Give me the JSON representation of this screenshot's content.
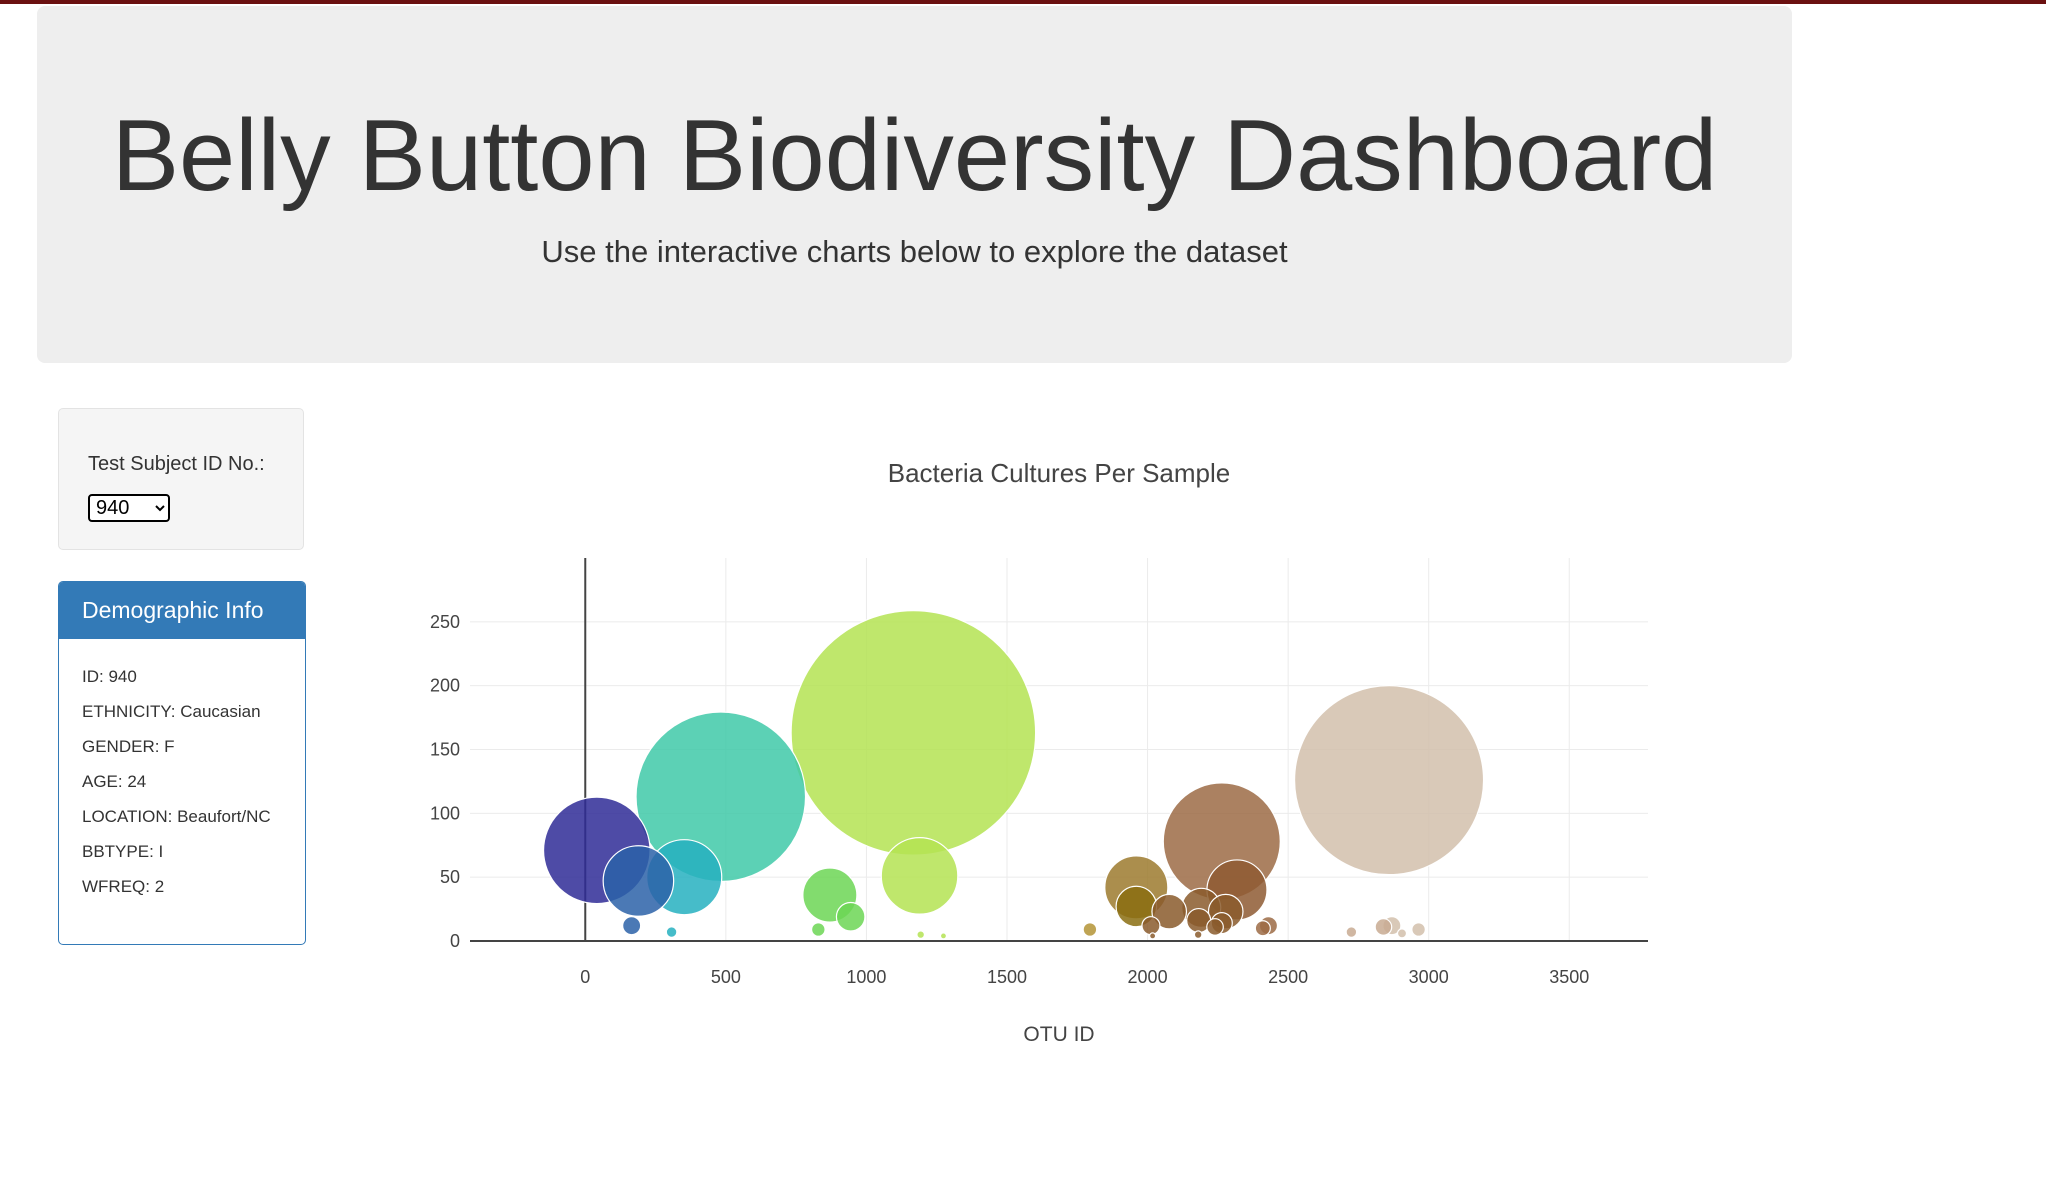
{
  "header": {
    "title": "Belly Button Biodiversity Dashboard",
    "subtitle": "Use the interactive charts below to explore the dataset"
  },
  "selector": {
    "label": "Test Subject ID No.:",
    "selected": "940"
  },
  "demographics": {
    "heading": "Demographic Info",
    "rows": [
      "ID: 940",
      "ETHNICITY: Caucasian",
      "GENDER: F",
      "AGE: 24",
      "LOCATION: Beaufort/NC",
      "BBTYPE: I",
      "WFREQ: 2"
    ]
  },
  "chart_data": {
    "type": "scatter",
    "title": "Bacteria Cultures Per Sample",
    "xlabel": "OTU ID",
    "ylabel": "",
    "xlim": [
      -410,
      3780
    ],
    "ylim": [
      0,
      300
    ],
    "xticks": [
      0,
      500,
      1000,
      1500,
      2000,
      2500,
      3000,
      3500
    ],
    "yticks": [
      0,
      50,
      100,
      150,
      200,
      250
    ],
    "grid": true,
    "bubble_size_is_value": true,
    "colorscale": "Earth",
    "points": [
      {
        "x": 1167,
        "y": 163,
        "color": "#b4e352"
      },
      {
        "x": 2859,
        "y": 126,
        "color": "#d2bfac"
      },
      {
        "x": 482,
        "y": 113,
        "color": "#3fc9a8"
      },
      {
        "x": 2264,
        "y": 78,
        "color": "#9c6b45"
      },
      {
        "x": 41,
        "y": 71,
        "color": "#2f2c97"
      },
      {
        "x": 189,
        "y": 47,
        "color": "#2b62a8"
      },
      {
        "x": 352,
        "y": 50,
        "color": "#26b0bf"
      },
      {
        "x": 1189,
        "y": 51,
        "color": "#b4e352"
      },
      {
        "x": 870,
        "y": 36,
        "color": "#6cd655"
      },
      {
        "x": 2318,
        "y": 40,
        "color": "#8e5a32"
      },
      {
        "x": 1960,
        "y": 42,
        "color": "#9c7a2e"
      },
      {
        "x": 1960,
        "y": 27,
        "color": "#8a6d10"
      },
      {
        "x": 2191,
        "y": 26,
        "color": "#8a5a2c"
      },
      {
        "x": 2077,
        "y": 23,
        "color": "#8a5a2c"
      },
      {
        "x": 2278,
        "y": 23,
        "color": "#8a5a2c"
      },
      {
        "x": 944,
        "y": 19,
        "color": "#6cd655"
      },
      {
        "x": 2182,
        "y": 16,
        "color": "#8a5a2c"
      },
      {
        "x": 2264,
        "y": 14,
        "color": "#8a5a2c"
      },
      {
        "x": 2012,
        "y": 12,
        "color": "#8a5a2c"
      },
      {
        "x": 2410,
        "y": 10,
        "color": "#9c6b45"
      },
      {
        "x": 2839,
        "y": 11,
        "color": "#c8aa92"
      },
      {
        "x": 2869,
        "y": 12,
        "color": "#d2bfac"
      },
      {
        "x": 2964,
        "y": 9,
        "color": "#d2bfac"
      },
      {
        "x": 2725,
        "y": 7,
        "color": "#c8aa92"
      },
      {
        "x": 2905,
        "y": 6,
        "color": "#d2bfac"
      },
      {
        "x": 1795,
        "y": 9,
        "color": "#b49436"
      },
      {
        "x": 2240,
        "y": 11,
        "color": "#8a5a2c"
      },
      {
        "x": 2430,
        "y": 12,
        "color": "#9c6b45"
      },
      {
        "x": 165,
        "y": 12,
        "color": "#2b62a8"
      },
      {
        "x": 829,
        "y": 9,
        "color": "#6cd655"
      },
      {
        "x": 307,
        "y": 7,
        "color": "#26b0bf"
      },
      {
        "x": 1193,
        "y": 5,
        "color": "#b4e352"
      },
      {
        "x": 1274,
        "y": 4,
        "color": "#b4e352"
      },
      {
        "x": 2180,
        "y": 5,
        "color": "#8a5a2c"
      },
      {
        "x": 2018,
        "y": 4,
        "color": "#8a5a2c"
      }
    ]
  }
}
